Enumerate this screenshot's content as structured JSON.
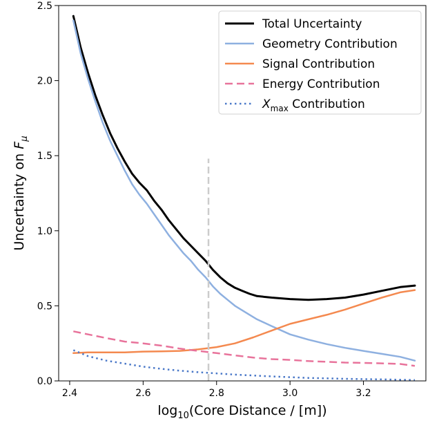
{
  "chart_data": {
    "type": "line",
    "xlabel_parts": [
      "log",
      "10",
      "(Core Distance / [m])"
    ],
    "ylabel_parts": [
      "Uncertainty on ",
      "F",
      "μ"
    ],
    "xlim": [
      2.37,
      3.37
    ],
    "ylim": [
      0.0,
      2.5
    ],
    "xticks": [
      2.4,
      2.6,
      2.8,
      3.0,
      3.2
    ],
    "xtick_labels": [
      "2.4",
      "2.6",
      "2.8",
      "3.0",
      "3.2"
    ],
    "yticks": [
      0.0,
      0.5,
      1.0,
      1.5,
      2.0,
      2.5
    ],
    "ytick_labels": [
      "0.0",
      "0.5",
      "1.0",
      "1.5",
      "2.0",
      "2.5"
    ],
    "grid": false,
    "legend_position": "top-right",
    "vline": {
      "x": 2.778,
      "y_range": [
        0.0,
        1.48
      ],
      "color": "#cccccc",
      "style": "dashed"
    },
    "series": [
      {
        "name": "Total Uncertainty",
        "color": "#000000",
        "style": "solid",
        "width": 3,
        "x": [
          2.41,
          2.43,
          2.45,
          2.47,
          2.49,
          2.51,
          2.53,
          2.55,
          2.57,
          2.59,
          2.61,
          2.63,
          2.65,
          2.67,
          2.69,
          2.71,
          2.73,
          2.75,
          2.77,
          2.79,
          2.81,
          2.83,
          2.85,
          2.87,
          2.89,
          2.91,
          2.95,
          3.0,
          3.05,
          3.1,
          3.15,
          3.2,
          3.25,
          3.3,
          3.34
        ],
        "y": [
          2.43,
          2.22,
          2.05,
          1.9,
          1.77,
          1.65,
          1.55,
          1.46,
          1.38,
          1.32,
          1.27,
          1.2,
          1.14,
          1.07,
          1.01,
          0.95,
          0.9,
          0.85,
          0.8,
          0.74,
          0.69,
          0.65,
          0.62,
          0.6,
          0.58,
          0.565,
          0.555,
          0.545,
          0.54,
          0.545,
          0.555,
          0.575,
          0.6,
          0.625,
          0.635
        ]
      },
      {
        "name": "Geometry Contribution",
        "color": "#8eb0e0",
        "style": "solid",
        "width": 2.5,
        "x": [
          2.41,
          2.43,
          2.45,
          2.47,
          2.49,
          2.51,
          2.53,
          2.55,
          2.57,
          2.59,
          2.61,
          2.63,
          2.65,
          2.67,
          2.69,
          2.71,
          2.73,
          2.75,
          2.77,
          2.79,
          2.81,
          2.83,
          2.85,
          2.87,
          2.89,
          2.91,
          2.95,
          3.0,
          3.05,
          3.1,
          3.15,
          3.2,
          3.25,
          3.3,
          3.34
        ],
        "y": [
          2.4,
          2.18,
          2.01,
          1.86,
          1.72,
          1.6,
          1.5,
          1.4,
          1.31,
          1.24,
          1.18,
          1.11,
          1.04,
          0.97,
          0.91,
          0.85,
          0.8,
          0.74,
          0.69,
          0.63,
          0.58,
          0.54,
          0.5,
          0.47,
          0.44,
          0.41,
          0.365,
          0.31,
          0.275,
          0.245,
          0.22,
          0.2,
          0.18,
          0.16,
          0.135
        ]
      },
      {
        "name": "Signal Contribution",
        "color": "#f4894f",
        "style": "solid",
        "width": 2.5,
        "x": [
          2.41,
          2.45,
          2.5,
          2.55,
          2.6,
          2.65,
          2.7,
          2.75,
          2.8,
          2.85,
          2.9,
          2.95,
          3.0,
          3.05,
          3.1,
          3.15,
          3.2,
          3.25,
          3.3,
          3.34
        ],
        "y": [
          0.185,
          0.19,
          0.19,
          0.19,
          0.195,
          0.197,
          0.2,
          0.21,
          0.225,
          0.25,
          0.29,
          0.335,
          0.38,
          0.41,
          0.44,
          0.475,
          0.515,
          0.555,
          0.59,
          0.605
        ]
      },
      {
        "name": "Energy Contribution",
        "color": "#e8739b",
        "style": "dashed",
        "width": 2.5,
        "x": [
          2.41,
          2.45,
          2.5,
          2.55,
          2.6,
          2.65,
          2.7,
          2.75,
          2.8,
          2.85,
          2.9,
          2.95,
          3.0,
          3.05,
          3.1,
          3.15,
          3.2,
          3.25,
          3.3,
          3.34
        ],
        "y": [
          0.33,
          0.31,
          0.285,
          0.262,
          0.25,
          0.235,
          0.215,
          0.2,
          0.185,
          0.17,
          0.155,
          0.145,
          0.14,
          0.132,
          0.127,
          0.122,
          0.12,
          0.117,
          0.113,
          0.1
        ]
      },
      {
        "name_parts": [
          "X",
          "max",
          " Contribution"
        ],
        "color": "#4a78c8",
        "style": "dotted",
        "width": 2.5,
        "x": [
          2.41,
          2.45,
          2.5,
          2.55,
          2.6,
          2.65,
          2.7,
          2.75,
          2.8,
          2.85,
          2.9,
          2.95,
          3.0,
          3.05,
          3.1,
          3.15,
          3.2,
          3.25,
          3.3,
          3.34
        ],
        "y": [
          0.205,
          0.165,
          0.135,
          0.115,
          0.095,
          0.08,
          0.068,
          0.058,
          0.05,
          0.042,
          0.036,
          0.03,
          0.025,
          0.02,
          0.017,
          0.014,
          0.012,
          0.01,
          0.008,
          0.006
        ]
      }
    ]
  }
}
